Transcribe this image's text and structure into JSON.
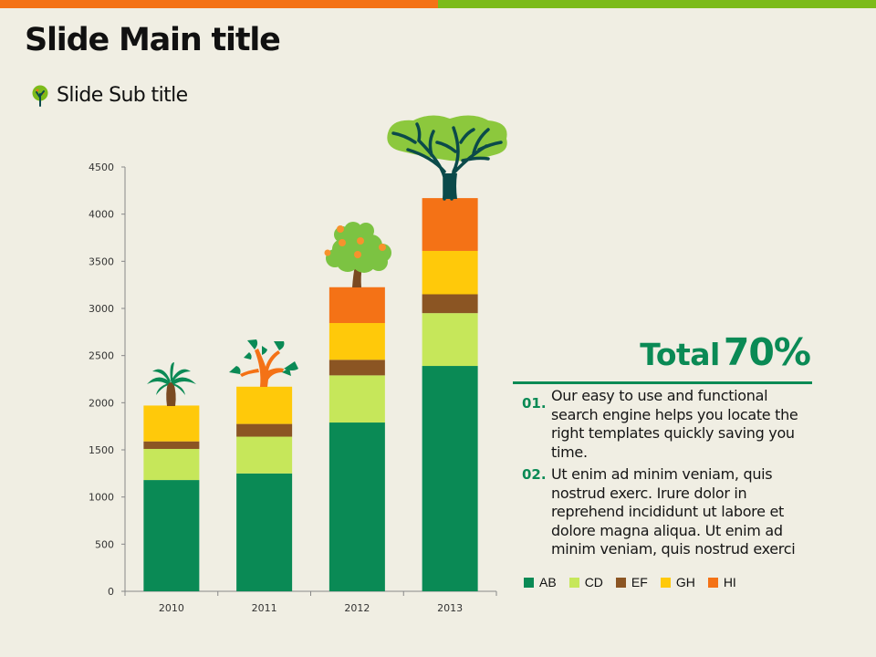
{
  "slide": {
    "title": "Slide Main title",
    "subtitle": "Slide Sub title",
    "subtitle_icon": "tree-icon"
  },
  "colors": {
    "stripe_left": "#f47216",
    "stripe_right": "#7cbb1a",
    "accent": "#0a8a55"
  },
  "summary": {
    "total_label": "Total",
    "total_value": "70%",
    "points": [
      {
        "number": "01.",
        "text": "Our easy to use and functional search engine helps you locate the right templates quickly saving you time."
      },
      {
        "number": "02.",
        "text": "Ut enim ad minim veniam, quis nostrud exerc. Irure dolor in reprehend incididunt ut labore et dolore magna aliqua. Ut enim ad minim veniam, quis nostrud exerci"
      }
    ]
  },
  "chart_data": {
    "type": "bar",
    "stacked": true,
    "title": "",
    "xlabel": "",
    "ylabel": "",
    "categories": [
      "2010",
      "2011",
      "2012",
      "2013"
    ],
    "ylim": [
      0,
      4500
    ],
    "yticks": [
      0,
      500,
      1000,
      1500,
      2000,
      2500,
      3000,
      3500,
      4000,
      4500
    ],
    "grid": false,
    "legend_position": "bottom-right",
    "series": [
      {
        "name": "AB",
        "color": "#0a8a55",
        "values": [
          1180,
          1250,
          1790,
          2390
        ]
      },
      {
        "name": "CD",
        "color": "#c6e75a",
        "values": [
          330,
          390,
          500,
          560
        ]
      },
      {
        "name": "EF",
        "color": "#8b5523",
        "values": [
          80,
          135,
          165,
          200
        ]
      },
      {
        "name": "GH",
        "color": "#ffc90a",
        "values": [
          380,
          395,
          390,
          460
        ]
      },
      {
        "name": "HI",
        "color": "#f47216",
        "values": [
          0,
          0,
          380,
          560
        ]
      }
    ],
    "decorations": [
      "palm-tree-icon",
      "leafy-sapling-icon",
      "fruit-tree-icon",
      "large-tree-icon"
    ]
  }
}
